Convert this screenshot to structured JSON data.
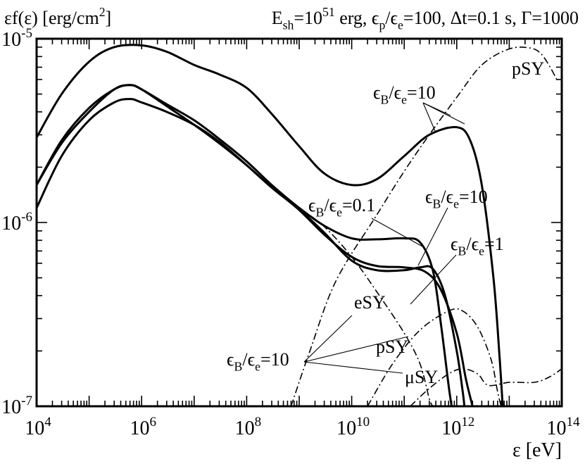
{
  "chart_data": {
    "type": "line",
    "title": "εf(ε) [erg/cm²]    E_sh=10^51 erg, ε_p/ε_e=100, Δt=0.1 s, Γ=1000",
    "ylabel": "εf(ε) [erg/cm²]",
    "xlabel": "ε [eV]",
    "header": {
      "ylabel": "εf(ε) [erg/cm",
      "ylabel_sup": "2",
      "ylabel_close": "]",
      "params": [
        {
          "t": "E"
        },
        {
          "t": "sh",
          "sub": true
        },
        {
          "t": "=10"
        },
        {
          "t": "51",
          "sup": true
        },
        {
          "t": " erg, ϵ"
        },
        {
          "t": "p",
          "sub": true
        },
        {
          "t": "/ϵ"
        },
        {
          "t": "e",
          "sub": true
        },
        {
          "t": "=100, Δt=0.1 s, Γ=1000"
        }
      ]
    },
    "x_scale": "log",
    "y_scale": "log",
    "xlim": [
      10000,
      100000000000000
    ],
    "ylim": [
      1e-07,
      1e-05
    ],
    "x_ticks": [
      {
        "base": "10",
        "exp": "4",
        "value": 10000
      },
      {
        "base": "10",
        "exp": "6",
        "value": 1000000
      },
      {
        "base": "10",
        "exp": "8",
        "value": 100000000
      },
      {
        "base": "10",
        "exp": "10",
        "value": 10000000000
      },
      {
        "base": "10",
        "exp": "12",
        "value": 1000000000000
      },
      {
        "base": "10",
        "exp": "14",
        "value": 100000000000000
      }
    ],
    "y_ticks": [
      {
        "base": "10",
        "exp": "-7",
        "value": 1e-07
      },
      {
        "base": "10",
        "exp": "-6",
        "value": 1e-06
      },
      {
        "base": "10",
        "exp": "-5",
        "value": 1e-05
      }
    ],
    "series": [
      {
        "id": "total-eB-eE-10",
        "style": "solid",
        "points": [
          [
            10000,
            2.9e-06
          ],
          [
            30000,
            5e-06
          ],
          [
            100000,
            7.5e-06
          ],
          [
            300000,
            9e-06
          ],
          [
            1000000,
            9.2e-06
          ],
          [
            3000000,
            8.5e-06
          ],
          [
            10000000,
            7.2e-06
          ],
          [
            30000000,
            6.4e-06
          ],
          [
            100000000,
            5.4e-06
          ],
          [
            300000000,
            3.9e-06
          ],
          [
            1000000000,
            2.6e-06
          ],
          [
            3000000000,
            1.85e-06
          ],
          [
            10000000000,
            1.6e-06
          ],
          [
            30000000000,
            1.72e-06
          ],
          [
            100000000000,
            2.3e-06
          ],
          [
            300000000000,
            3e-06
          ],
          [
            1000000000000,
            3.3e-06
          ],
          [
            1800000000000,
            2.8e-06
          ],
          [
            3000000000000,
            1.6e-06
          ],
          [
            5000000000000,
            5e-07
          ],
          [
            6500000000000,
            1.9e-07
          ],
          [
            7500000000000,
            1e-07
          ]
        ]
      },
      {
        "id": "total-eB-eE-0.1",
        "style": "solid",
        "points": [
          [
            10000,
            1.6e-06
          ],
          [
            30000,
            2.7e-06
          ],
          [
            100000,
            4e-06
          ],
          [
            300000,
            5.3e-06
          ],
          [
            600000,
            5.6e-06
          ],
          [
            1000000,
            5.3e-06
          ],
          [
            3000000,
            4.4e-06
          ],
          [
            10000000,
            3.6e-06
          ],
          [
            30000000,
            2.85e-06
          ],
          [
            100000000,
            2.15e-06
          ],
          [
            300000000,
            1.6e-06
          ],
          [
            1000000000,
            1.2e-06
          ],
          [
            3000000000,
            9.6e-07
          ],
          [
            10000000000,
            8.2e-07
          ],
          [
            30000000000,
            8.1e-07
          ],
          [
            100000000000,
            8.2e-07
          ],
          [
            200000000000,
            7.8e-07
          ],
          [
            350000000000,
            5.5e-07
          ],
          [
            500000000000,
            2.8e-07
          ],
          [
            700000000000,
            1.3e-07
          ],
          [
            800000000000,
            1e-07
          ]
        ]
      },
      {
        "id": "total-eB-eE-1",
        "style": "solid",
        "points": [
          [
            10000,
            1.6e-06
          ],
          [
            30000,
            2.8e-06
          ],
          [
            100000,
            4.2e-06
          ],
          [
            300000,
            5.3e-06
          ],
          [
            600000,
            5.6e-06
          ],
          [
            1000000,
            5.3e-06
          ],
          [
            3000000,
            4.3e-06
          ],
          [
            10000000,
            3.4e-06
          ],
          [
            30000000,
            2.7e-06
          ],
          [
            100000000,
            2.05e-06
          ],
          [
            300000000,
            1.55e-06
          ],
          [
            1000000000,
            1.17e-06
          ],
          [
            3000000000,
            8.6e-07
          ],
          [
            10000000000,
            6.5e-07
          ],
          [
            30000000000,
            5.8e-07
          ],
          [
            100000000000,
            5.7e-07
          ],
          [
            250000000000,
            5.4e-07
          ],
          [
            500000000000,
            4.3e-07
          ],
          [
            1000000000000,
            2.5e-07
          ],
          [
            1500000000000,
            1.4e-07
          ],
          [
            2000000000000,
            1e-07
          ]
        ]
      },
      {
        "id": "total-eB-eE-10-lower",
        "style": "solid",
        "points": [
          [
            10000,
            1.2e-06
          ],
          [
            30000,
            2.3e-06
          ],
          [
            100000,
            3.6e-06
          ],
          [
            300000,
            4.5e-06
          ],
          [
            600000,
            4.7e-06
          ],
          [
            1000000,
            4.5e-06
          ],
          [
            3000000,
            4e-06
          ],
          [
            10000000,
            3.4e-06
          ],
          [
            30000000,
            2.75e-06
          ],
          [
            100000000,
            2.05e-06
          ],
          [
            300000000,
            1.55e-06
          ],
          [
            1000000000,
            1.18e-06
          ],
          [
            3000000000,
            8.8e-07
          ],
          [
            10000000000,
            6.2e-07
          ],
          [
            30000000000,
            5.5e-07
          ],
          [
            100000000000,
            5.5e-07
          ],
          [
            200000000000,
            5.7e-07
          ],
          [
            350000000000,
            5.6e-07
          ],
          [
            600000000000,
            4e-07
          ],
          [
            1000000000000,
            2e-07
          ],
          [
            1300000000000,
            1.2e-07
          ],
          [
            1400000000000,
            1e-07
          ]
        ]
      },
      {
        "id": "eSY",
        "style": "dashdot",
        "points": [
          [
            1000000000,
            1.2e-06
          ],
          [
            3000000000,
            9.5e-07
          ],
          [
            10000000000,
            6.5e-07
          ],
          [
            30000000000,
            4.2e-07
          ],
          [
            100000000000,
            2.5e-07
          ],
          [
            200000000000,
            1.7e-07
          ],
          [
            300000000000,
            1.1e-07
          ],
          [
            350000000000,
            1e-07
          ]
        ]
      },
      {
        "id": "pSY-eB-eE-10",
        "style": "dashdot",
        "points": [
          [
            700000000,
            1e-07
          ],
          [
            1600000000,
            2e-07
          ],
          [
            5000000000,
            4.8e-07
          ],
          [
            30000000000,
            1.1e-06
          ],
          [
            100000000000,
            1.9e-06
          ],
          [
            300000000000,
            3e-06
          ],
          [
            1000000000000,
            4.8e-06
          ],
          [
            3000000000000,
            7.2e-06
          ],
          [
            10000000000000,
            8.8e-06
          ],
          [
            25000000000000,
            8.9e-06
          ],
          [
            40000000000000,
            8.3e-06
          ],
          [
            60000000000000,
            7e-06
          ],
          [
            80000000000000,
            6e-06
          ]
        ]
      },
      {
        "id": "pSY",
        "style": "dashdot",
        "points": [
          [
            20000000000,
            1e-07
          ],
          [
            60000000000,
            1.7e-07
          ],
          [
            200000000000,
            2.6e-07
          ],
          [
            700000000000,
            3.3e-07
          ],
          [
            1300000000000,
            3.3e-07
          ],
          [
            2500000000000,
            2.7e-07
          ],
          [
            4500000000000,
            1.8e-07
          ],
          [
            6000000000000,
            1.2e-07
          ],
          [
            7000000000000,
            1e-07
          ]
        ]
      },
      {
        "id": "muSY",
        "style": "dashdot",
        "points": [
          [
            130000000000,
            1e-07
          ],
          [
            300000000000,
            1.25e-07
          ],
          [
            700000000000,
            1.5e-07
          ],
          [
            1300000000000,
            1.6e-07
          ],
          [
            2500000000000,
            1.5e-07
          ],
          [
            4000000000000,
            1.3e-07
          ],
          [
            10000000000000,
            1.35e-07
          ],
          [
            30000000000000,
            1.35e-07
          ],
          [
            60000000000000,
            1.45e-07
          ],
          [
            100000000000000,
            1.6e-07
          ]
        ]
      }
    ],
    "annotations": [
      {
        "id": "ann-pSY-top",
        "parts": [
          {
            "t": "pSY"
          }
        ]
      },
      {
        "id": "ann-eBe-10-top",
        "parts": [
          {
            "t": "ϵ"
          },
          {
            "t": "B",
            "sub": true
          },
          {
            "t": "/ϵ"
          },
          {
            "t": "e",
            "sub": true
          },
          {
            "t": "=10"
          }
        ]
      },
      {
        "id": "ann-eBe-0.1",
        "parts": [
          {
            "t": "ϵ"
          },
          {
            "t": "B",
            "sub": true
          },
          {
            "t": "/ϵ"
          },
          {
            "t": "e",
            "sub": true
          },
          {
            "t": "=0.1"
          }
        ]
      },
      {
        "id": "ann-eBe-10-mid",
        "parts": [
          {
            "t": "ϵ"
          },
          {
            "t": "B",
            "sub": true
          },
          {
            "t": "/ϵ"
          },
          {
            "t": "e",
            "sub": true
          },
          {
            "t": "=10"
          }
        ]
      },
      {
        "id": "ann-eBe-1",
        "parts": [
          {
            "t": "ϵ"
          },
          {
            "t": "B",
            "sub": true
          },
          {
            "t": "/ϵ"
          },
          {
            "t": "e",
            "sub": true
          },
          {
            "t": "=1"
          }
        ]
      },
      {
        "id": "ann-eSY",
        "parts": [
          {
            "t": "eSY"
          }
        ]
      },
      {
        "id": "ann-pSY-bottom",
        "parts": [
          {
            "t": "pSY"
          }
        ]
      },
      {
        "id": "ann-muSY",
        "parts": [
          {
            "t": "μSY"
          }
        ]
      },
      {
        "id": "ann-eBe-10-bottom",
        "parts": [
          {
            "t": "ϵ"
          },
          {
            "t": "B",
            "sub": true
          },
          {
            "t": "/ϵ"
          },
          {
            "t": "e",
            "sub": true
          },
          {
            "t": "=10"
          }
        ]
      }
    ],
    "grid": false,
    "legend": "none"
  }
}
